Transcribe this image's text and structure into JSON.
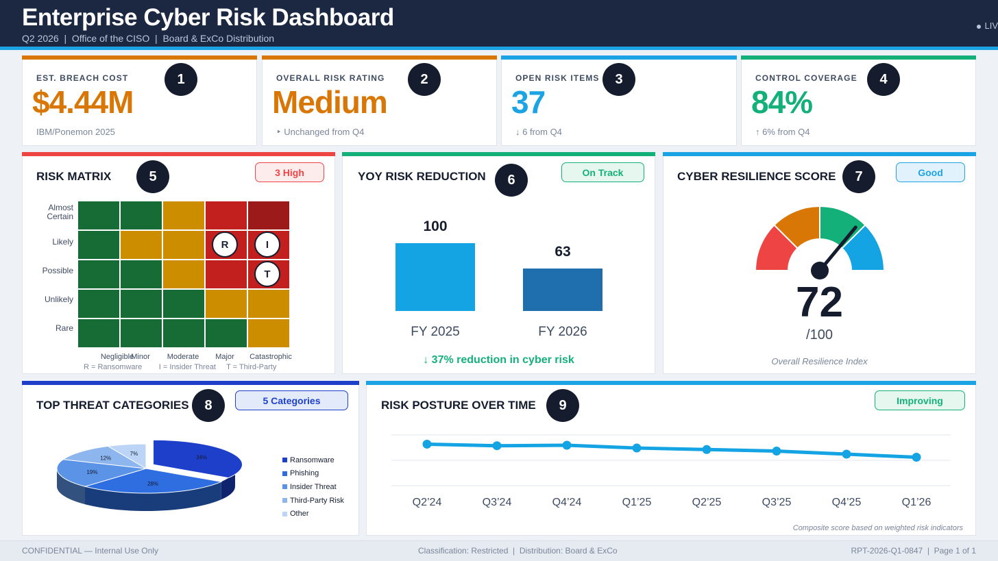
{
  "header": {
    "title": "Enterprise Cyber Risk Dashboard",
    "subtitle": "Q2 2026  |  Office of the CISO  |  Board & ExCo Distribution",
    "live": "LIV"
  },
  "kpis": [
    {
      "num": "1",
      "label": "EST. BREACH COST",
      "value": "$4.44M",
      "note": "IBM/Ponemon 2025",
      "color": "#d97706"
    },
    {
      "num": "2",
      "label": "OVERALL RISK RATING",
      "value": "Medium",
      "note": "‣  Unchanged from Q4",
      "color": "#d97706"
    },
    {
      "num": "3",
      "label": "OPEN RISK ITEMS",
      "value": "37",
      "note": "↓ 6 from Q4",
      "color": "#1ca3e4"
    },
    {
      "num": "4",
      "label": "CONTROL COVERAGE",
      "value": "84%",
      "note": "↑ 6% from Q4",
      "color": "#13b07a"
    }
  ],
  "risk_matrix": {
    "num": "5",
    "title": "RISK MATRIX",
    "pill": "3 High",
    "likelihood": [
      "Almost Certain",
      "Likely",
      "Possible",
      "Unlikely",
      "Rare"
    ],
    "impact": [
      "Negligible",
      "Minor",
      "Moderate",
      "Major",
      "Catastrophic"
    ],
    "markers": [
      "R",
      "I",
      "T"
    ],
    "legend": "R = Ransomware        I = Insider Threat     T = Third-Party",
    "colors": {
      "green": "#176b34",
      "amber": "#cc8d00",
      "red": "#c21f1f",
      "darkred": "#9c1a1a"
    }
  },
  "yoy": {
    "num": "6",
    "title": "YOY RISK REDUCTION",
    "pill": "On Track",
    "bars": [
      {
        "label": "FY 2025",
        "value": 100,
        "value_text": "100",
        "color": "#14a3e3"
      },
      {
        "label": "FY 2026",
        "value": 63,
        "value_text": "63",
        "color": "#1f6fae"
      }
    ],
    "reduction_text": "↓ 37%  reduction in cyber risk"
  },
  "resilience": {
    "num": "7",
    "title": "CYBER RESILIENCE SCORE",
    "pill": "Good",
    "score": 72,
    "score_text": "72",
    "max_text": "/100",
    "note": "Overall Resilience Index",
    "segments": [
      "#ef4444",
      "#d97706",
      "#13b07a",
      "#14a3e3"
    ]
  },
  "threats": {
    "num": "8",
    "title": "TOP THREAT CATEGORIES",
    "pill": "5 Categories",
    "slices": [
      {
        "name": "Ransomware",
        "value": 34,
        "label": "34%",
        "color": "#1d3fc9"
      },
      {
        "name": "Phishing",
        "value": 28,
        "label": "28%",
        "color": "#2e6ee0"
      },
      {
        "name": "Insider Threat",
        "value": 19,
        "label": "19%",
        "color": "#5b93e6"
      },
      {
        "name": "Third-Party Risk",
        "value": 12,
        "label": "12%",
        "color": "#8db6ee"
      },
      {
        "name": "Other",
        "value": 7,
        "label": "7%",
        "color": "#bcd4f5"
      }
    ]
  },
  "posture": {
    "num": "9",
    "title": "RISK POSTURE OVER TIME",
    "pill": "Improving",
    "note": "Composite score based on weighted risk indicators",
    "color": "#14a3e3"
  },
  "chart_data": [
    {
      "type": "bar",
      "title": "YOY RISK REDUCTION",
      "categories": [
        "FY 2025",
        "FY 2026"
      ],
      "values": [
        100,
        63
      ],
      "ylim": [
        0,
        100
      ]
    },
    {
      "type": "pie",
      "title": "TOP THREAT CATEGORIES",
      "categories": [
        "Ransomware",
        "Phishing",
        "Insider Threat",
        "Third-Party Risk",
        "Other"
      ],
      "values": [
        34,
        28,
        19,
        12,
        7
      ]
    },
    {
      "type": "line",
      "title": "RISK POSTURE OVER TIME",
      "x": [
        "Q2’24",
        "Q3’24",
        "Q4’24",
        "Q1’25",
        "Q2’25",
        "Q3’25",
        "Q4’25",
        "Q1’26"
      ],
      "values": [
        72,
        71,
        71.3,
        69.5,
        68.5,
        67.5,
        65.5,
        63.5
      ],
      "ylim": [
        45,
        78
      ],
      "xlabel": "",
      "ylabel": ""
    }
  ],
  "footer": {
    "left": "CONFIDENTIAL — Internal Use Only",
    "center": "Classification: Restricted  |  Distribution: Board & ExCo",
    "right": "RPT-2026-Q1-0847  |  Page 1 of 1"
  }
}
